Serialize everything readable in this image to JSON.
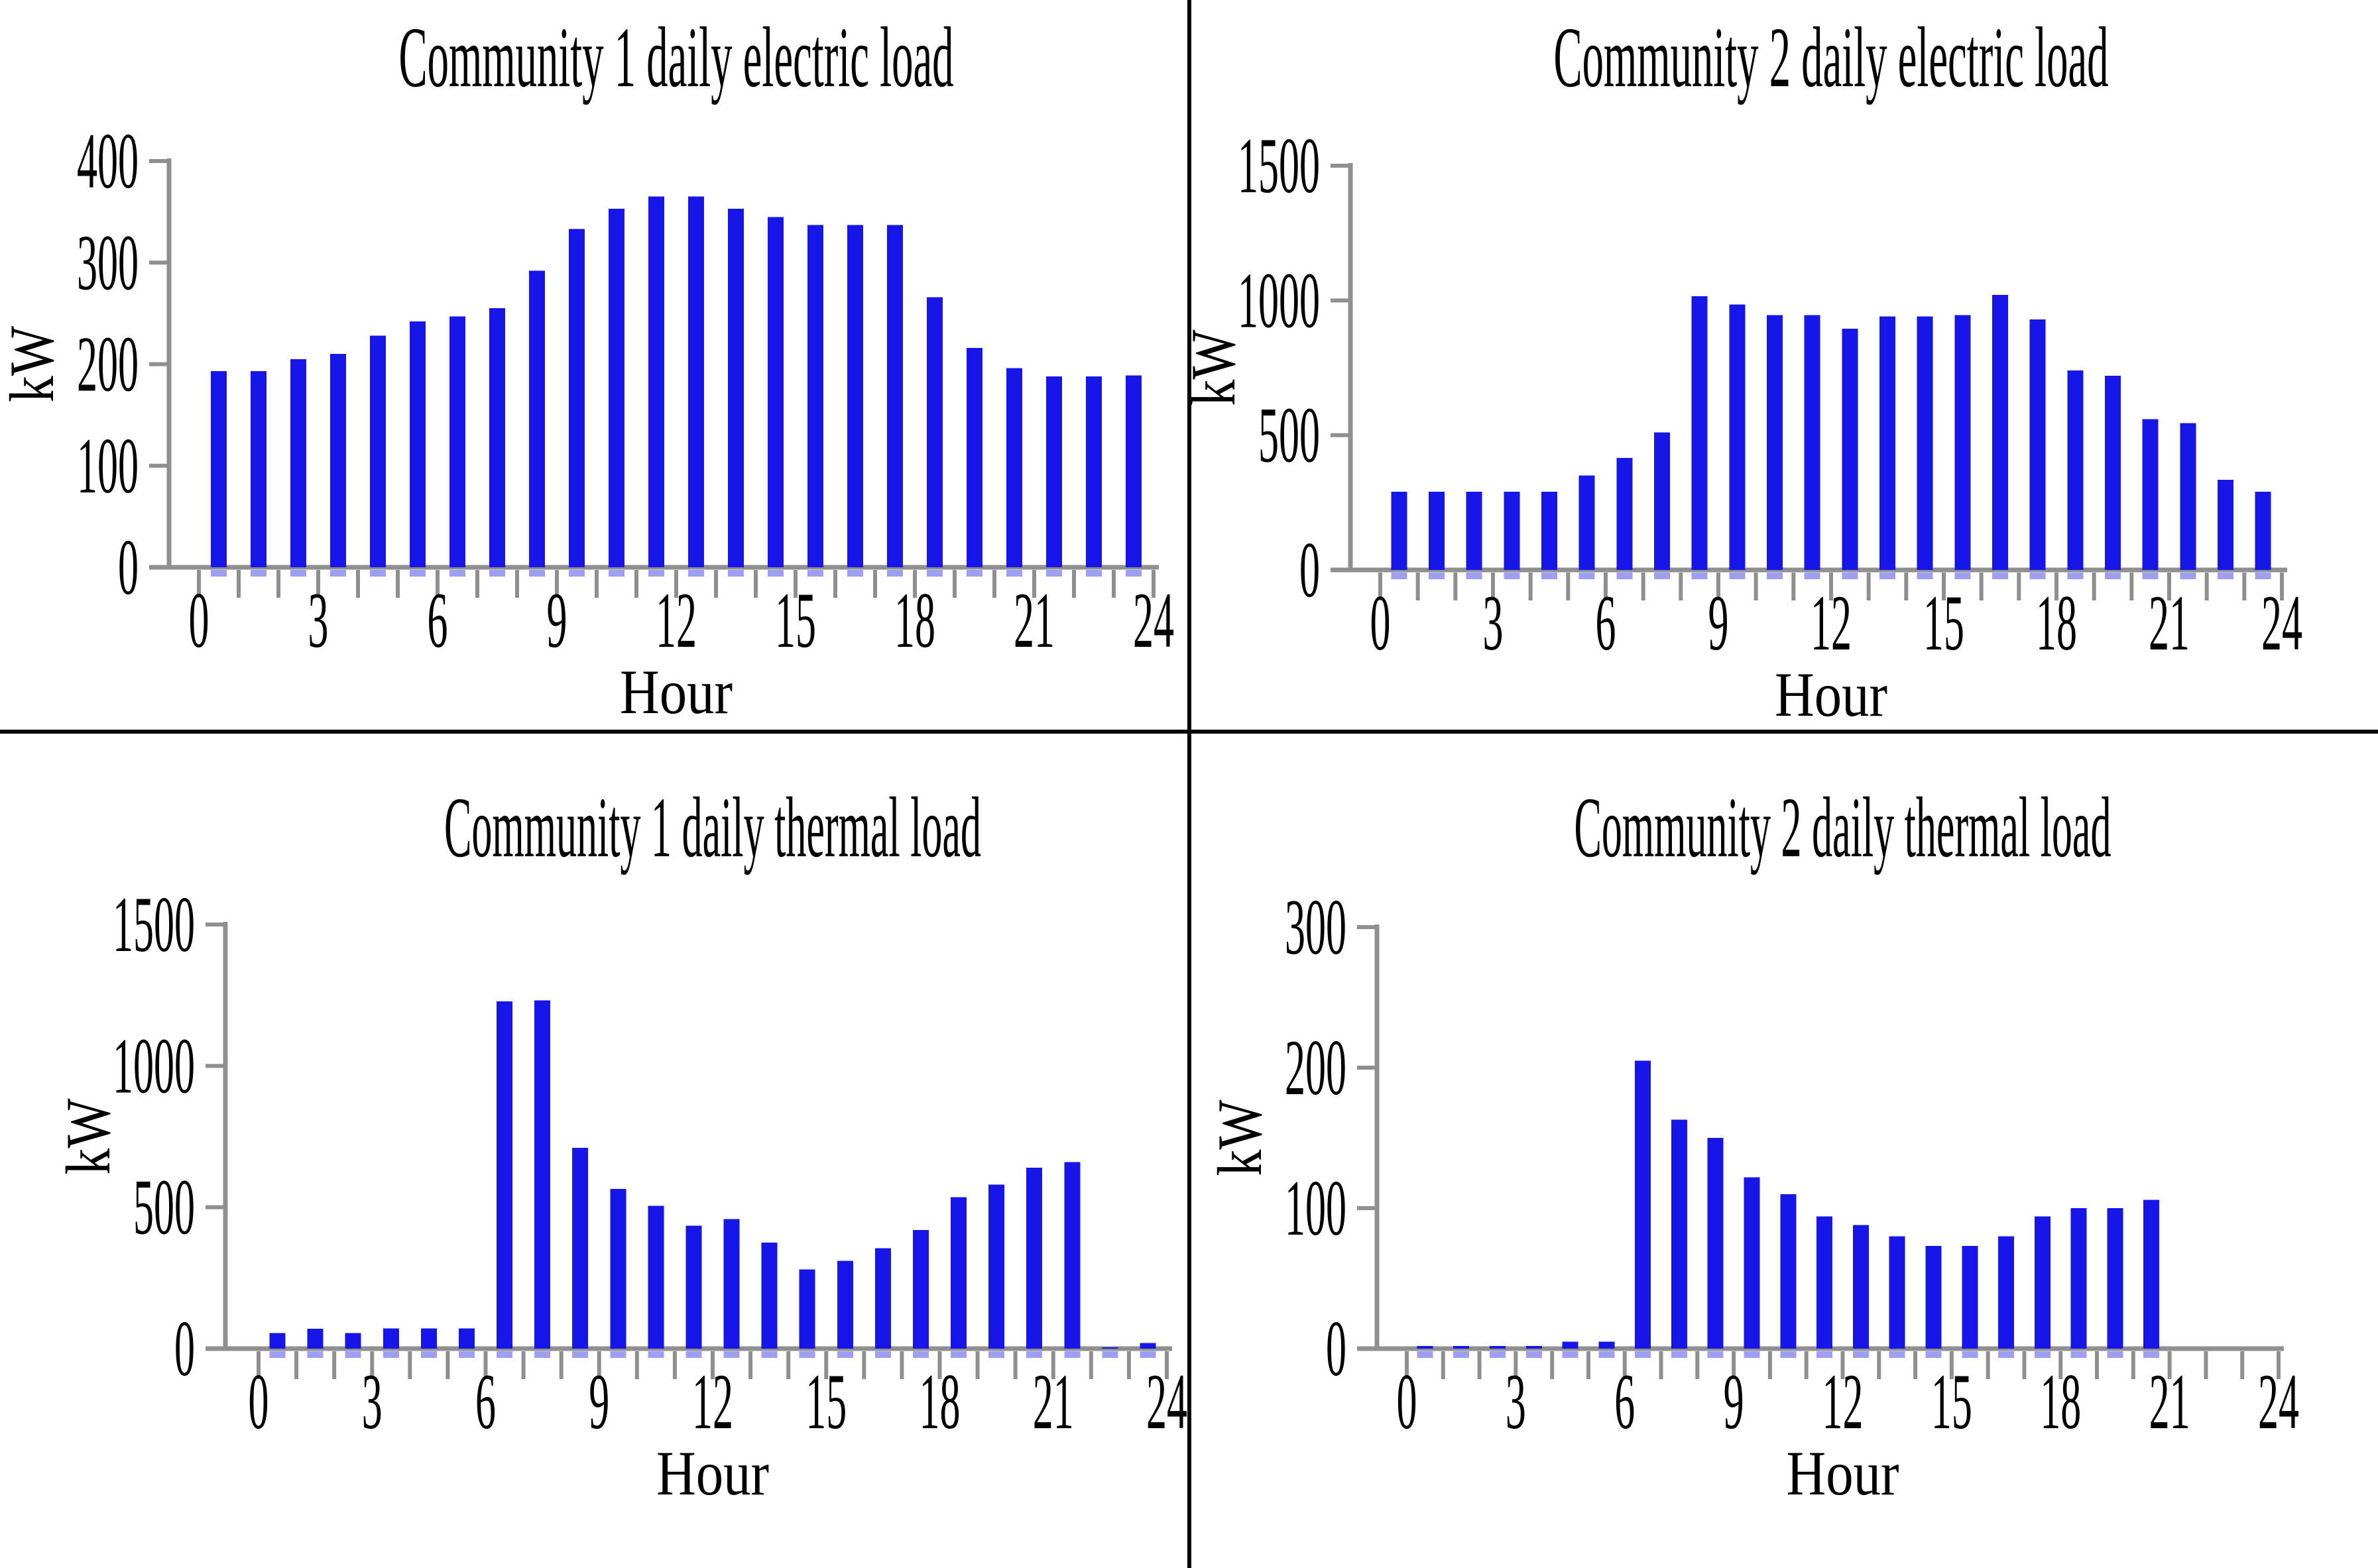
{
  "figure": {
    "layout": "2x2 grid of bar charts separated by black divider lines",
    "units": "kW"
  },
  "colors": {
    "bar": "#1616e8",
    "bar_under_axis_stub": "#9e9ef2",
    "axis": "#8f8f8f",
    "text": "#000000",
    "divider": "#000000",
    "background": "#ffffff"
  },
  "chart_data": [
    {
      "type": "bar",
      "title": "Community 1 daily electric load",
      "xlabel": "Hour",
      "ylabel": "kW",
      "x": [
        0,
        1,
        2,
        3,
        4,
        5,
        6,
        7,
        8,
        9,
        10,
        11,
        12,
        13,
        14,
        15,
        16,
        17,
        18,
        19,
        20,
        21,
        22,
        23
      ],
      "values": [
        193,
        193,
        205,
        210,
        228,
        242,
        247,
        255,
        292,
        333,
        353,
        365,
        365,
        353,
        345,
        337,
        337,
        337,
        266,
        216,
        196,
        188,
        188,
        189
      ],
      "ylim": [
        0,
        400
      ],
      "yticks": [
        0,
        100,
        200,
        300,
        400
      ],
      "xtick_labels": [
        0,
        3,
        6,
        9,
        12,
        15,
        18,
        21,
        24
      ],
      "x_minor_tick_step": 1,
      "xlim": [
        0,
        24
      ],
      "grid": false,
      "legend": "none",
      "bar_color": "#1616e8"
    },
    {
      "type": "bar",
      "title": "Community 2 daily electric load",
      "xlabel": "Hour",
      "ylabel": "kW",
      "x": [
        0,
        1,
        2,
        3,
        4,
        5,
        6,
        7,
        8,
        9,
        10,
        11,
        12,
        13,
        14,
        15,
        16,
        17,
        18,
        19,
        20,
        21,
        22,
        23
      ],
      "values": [
        290,
        290,
        290,
        290,
        290,
        350,
        415,
        510,
        1015,
        985,
        945,
        945,
        895,
        940,
        940,
        945,
        1020,
        930,
        740,
        720,
        560,
        545,
        335,
        290
      ],
      "ylim": [
        0,
        1500
      ],
      "yticks": [
        0,
        500,
        1000,
        1500
      ],
      "xtick_labels": [
        0,
        3,
        6,
        9,
        12,
        15,
        18,
        21,
        24
      ],
      "x_minor_tick_step": 1,
      "xlim": [
        0,
        24
      ],
      "grid": false,
      "legend": "none",
      "bar_color": "#1616e8"
    },
    {
      "type": "bar",
      "title": "Community 1 daily thermal load",
      "xlabel": "Hour",
      "ylabel": "kW",
      "x": [
        0,
        1,
        2,
        3,
        4,
        5,
        6,
        7,
        8,
        9,
        10,
        11,
        12,
        13,
        14,
        15,
        16,
        17,
        18,
        19,
        20,
        21,
        22,
        23
      ],
      "values": [
        55,
        70,
        55,
        72,
        72,
        72,
        1228,
        1232,
        710,
        565,
        505,
        435,
        458,
        375,
        280,
        310,
        355,
        420,
        535,
        580,
        640,
        660,
        5,
        20
      ],
      "ylim": [
        0,
        1500
      ],
      "yticks": [
        0,
        500,
        1000,
        1500
      ],
      "xtick_labels": [
        0,
        3,
        6,
        9,
        12,
        15,
        18,
        21,
        24
      ],
      "x_minor_tick_step": 1,
      "xlim": [
        0,
        24
      ],
      "grid": false,
      "legend": "none",
      "bar_color": "#1616e8"
    },
    {
      "type": "bar",
      "title": "Community 2 daily thermal load",
      "xlabel": "Hour",
      "ylabel": "kW",
      "x": [
        0,
        1,
        2,
        3,
        4,
        5,
        6,
        7,
        8,
        9,
        10,
        11,
        12,
        13,
        14,
        15,
        16,
        17,
        18,
        19,
        20,
        21,
        22,
        23
      ],
      "values": [
        2,
        2,
        2,
        2,
        5,
        5,
        205,
        163,
        150,
        122,
        110,
        94,
        88,
        80,
        73,
        73,
        80,
        94,
        100,
        100,
        106,
        0,
        0,
        0
      ],
      "ylim": [
        0,
        300
      ],
      "yticks": [
        0,
        100,
        200,
        300
      ],
      "xtick_labels": [
        0,
        3,
        6,
        9,
        12,
        15,
        18,
        21,
        24
      ],
      "x_minor_tick_step": 1,
      "xlim": [
        0,
        24
      ],
      "grid": false,
      "legend": "none",
      "bar_color": "#1616e8"
    }
  ]
}
